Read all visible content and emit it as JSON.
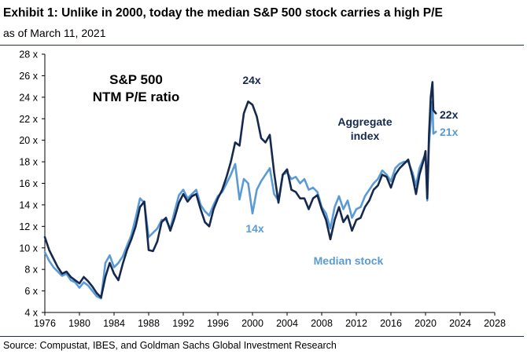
{
  "header": {
    "title": "Exhibit 1: Unlike in 2000, today the median S&P 500 stock carries a high P/E",
    "subtitle": "as of March 11, 2021"
  },
  "footer": {
    "source": "Source: Compustat, IBES, and Goldman Sachs Global Investment Research"
  },
  "colors": {
    "aggregate": "#15294f",
    "median": "#5b9bd5",
    "rule": "#1f2d5a"
  },
  "chart_data": {
    "type": "line",
    "title_line1": "S&P 500",
    "title_line2": "NTM P/E ratio",
    "xlim": [
      1976,
      2028
    ],
    "ylim": [
      4,
      28
    ],
    "x_ticks": [
      "1976",
      "1980",
      "1984",
      "1988",
      "1992",
      "1996",
      "2000",
      "2004",
      "2008",
      "2012",
      "2016",
      "2020",
      "2024",
      "2028"
    ],
    "y_ticks": [
      "4 x",
      "6 x",
      "8 x",
      "10 x",
      "12 x",
      "14 x",
      "16 x",
      "18 x",
      "20 x",
      "22 x",
      "24 x",
      "26 x",
      "28 x"
    ],
    "grid": false,
    "series": [
      {
        "name": "Aggregate index",
        "label_line1": "Aggregate",
        "label_line2": "index",
        "end_label": "22x",
        "color": "#15294f",
        "points": [
          [
            1976.0,
            11.0
          ],
          [
            1976.5,
            9.8
          ],
          [
            1977.0,
            9.0
          ],
          [
            1977.5,
            8.2
          ],
          [
            1978.0,
            7.6
          ],
          [
            1978.5,
            7.8
          ],
          [
            1979.0,
            7.3
          ],
          [
            1979.5,
            7.0
          ],
          [
            1980.0,
            6.7
          ],
          [
            1980.5,
            7.3
          ],
          [
            1981.0,
            6.9
          ],
          [
            1981.5,
            6.4
          ],
          [
            1982.0,
            5.8
          ],
          [
            1982.5,
            5.4
          ],
          [
            1983.0,
            7.3
          ],
          [
            1983.5,
            8.6
          ],
          [
            1984.0,
            7.6
          ],
          [
            1984.5,
            7.0
          ],
          [
            1985.0,
            8.5
          ],
          [
            1985.5,
            9.8
          ],
          [
            1986.0,
            10.8
          ],
          [
            1986.5,
            12.0
          ],
          [
            1987.0,
            13.8
          ],
          [
            1987.5,
            14.3
          ],
          [
            1988.0,
            9.8
          ],
          [
            1988.5,
            9.7
          ],
          [
            1989.0,
            10.6
          ],
          [
            1989.5,
            12.4
          ],
          [
            1990.0,
            12.8
          ],
          [
            1990.5,
            11.6
          ],
          [
            1991.0,
            12.8
          ],
          [
            1991.5,
            14.2
          ],
          [
            1992.0,
            15.0
          ],
          [
            1992.5,
            14.3
          ],
          [
            1993.0,
            14.8
          ],
          [
            1993.5,
            15.0
          ],
          [
            1994.0,
            13.6
          ],
          [
            1994.5,
            12.4
          ],
          [
            1995.0,
            12.0
          ],
          [
            1995.5,
            13.6
          ],
          [
            1996.0,
            14.6
          ],
          [
            1996.5,
            15.4
          ],
          [
            1997.0,
            16.6
          ],
          [
            1997.5,
            18.0
          ],
          [
            1998.0,
            19.8
          ],
          [
            1998.5,
            19.5
          ],
          [
            1999.0,
            22.5
          ],
          [
            1999.5,
            23.6
          ],
          [
            2000.0,
            23.3
          ],
          [
            2000.5,
            22.2
          ],
          [
            2001.0,
            20.2
          ],
          [
            2001.5,
            19.8
          ],
          [
            2002.0,
            20.5
          ],
          [
            2002.5,
            17.0
          ],
          [
            2003.0,
            14.2
          ],
          [
            2003.5,
            16.8
          ],
          [
            2004.0,
            17.3
          ],
          [
            2004.5,
            15.4
          ],
          [
            2005.0,
            15.2
          ],
          [
            2005.5,
            14.6
          ],
          [
            2006.0,
            14.6
          ],
          [
            2006.5,
            13.6
          ],
          [
            2007.0,
            14.6
          ],
          [
            2007.5,
            14.9
          ],
          [
            2008.0,
            13.6
          ],
          [
            2008.5,
            12.6
          ],
          [
            2009.0,
            10.8
          ],
          [
            2009.5,
            12.6
          ],
          [
            2010.0,
            13.8
          ],
          [
            2010.5,
            12.4
          ],
          [
            2011.0,
            13.0
          ],
          [
            2011.5,
            11.6
          ],
          [
            2012.0,
            12.6
          ],
          [
            2012.5,
            12.8
          ],
          [
            2013.0,
            13.8
          ],
          [
            2013.5,
            14.4
          ],
          [
            2014.0,
            15.4
          ],
          [
            2014.5,
            15.8
          ],
          [
            2015.0,
            16.8
          ],
          [
            2015.5,
            16.6
          ],
          [
            2016.0,
            15.6
          ],
          [
            2016.5,
            16.8
          ],
          [
            2017.0,
            17.4
          ],
          [
            2017.5,
            17.8
          ],
          [
            2018.0,
            18.2
          ],
          [
            2018.5,
            16.6
          ],
          [
            2018.9,
            15.0
          ],
          [
            2019.3,
            16.8
          ],
          [
            2019.8,
            18.2
          ],
          [
            2020.0,
            19.0
          ],
          [
            2020.2,
            14.6
          ],
          [
            2020.4,
            20.5
          ],
          [
            2020.6,
            24.0
          ],
          [
            2020.8,
            25.4
          ],
          [
            2020.9,
            22.8
          ],
          [
            2021.2,
            22.5
          ]
        ]
      },
      {
        "name": "Median stock",
        "label": "Median stock",
        "end_label": "21x",
        "color": "#5b9bd5",
        "points": [
          [
            1976.0,
            9.6
          ],
          [
            1976.5,
            8.8
          ],
          [
            1977.0,
            8.2
          ],
          [
            1977.5,
            7.8
          ],
          [
            1978.0,
            7.4
          ],
          [
            1978.5,
            7.6
          ],
          [
            1979.0,
            7.0
          ],
          [
            1979.5,
            6.8
          ],
          [
            1980.0,
            6.3
          ],
          [
            1980.5,
            6.8
          ],
          [
            1981.0,
            6.5
          ],
          [
            1981.5,
            6.0
          ],
          [
            1982.0,
            5.5
          ],
          [
            1982.5,
            5.3
          ],
          [
            1983.0,
            8.6
          ],
          [
            1983.5,
            9.3
          ],
          [
            1984.0,
            8.2
          ],
          [
            1984.5,
            8.6
          ],
          [
            1985.0,
            9.2
          ],
          [
            1985.5,
            10.2
          ],
          [
            1986.0,
            11.2
          ],
          [
            1986.5,
            12.8
          ],
          [
            1987.0,
            14.6
          ],
          [
            1987.5,
            14.2
          ],
          [
            1988.0,
            11.0
          ],
          [
            1988.5,
            11.4
          ],
          [
            1989.0,
            11.8
          ],
          [
            1989.5,
            12.6
          ],
          [
            1990.0,
            12.6
          ],
          [
            1990.5,
            11.8
          ],
          [
            1991.0,
            13.4
          ],
          [
            1991.5,
            14.9
          ],
          [
            1992.0,
            15.4
          ],
          [
            1992.5,
            14.6
          ],
          [
            1993.0,
            15.0
          ],
          [
            1993.5,
            15.4
          ],
          [
            1994.0,
            14.0
          ],
          [
            1994.5,
            13.4
          ],
          [
            1995.0,
            13.0
          ],
          [
            1995.5,
            14.0
          ],
          [
            1996.0,
            14.8
          ],
          [
            1996.5,
            15.2
          ],
          [
            1997.0,
            16.0
          ],
          [
            1997.5,
            16.8
          ],
          [
            1998.0,
            17.8
          ],
          [
            1998.5,
            14.5
          ],
          [
            1999.0,
            16.4
          ],
          [
            1999.5,
            16.0
          ],
          [
            2000.0,
            13.2
          ],
          [
            2000.5,
            15.4
          ],
          [
            2001.0,
            16.2
          ],
          [
            2001.5,
            16.8
          ],
          [
            2002.0,
            17.4
          ],
          [
            2002.5,
            15.0
          ],
          [
            2003.0,
            14.4
          ],
          [
            2003.5,
            16.8
          ],
          [
            2004.0,
            17.0
          ],
          [
            2004.5,
            16.4
          ],
          [
            2005.0,
            16.6
          ],
          [
            2005.5,
            16.0
          ],
          [
            2006.0,
            16.4
          ],
          [
            2006.5,
            15.4
          ],
          [
            2007.0,
            15.6
          ],
          [
            2007.5,
            15.2
          ],
          [
            2008.0,
            13.8
          ],
          [
            2008.5,
            13.2
          ],
          [
            2009.0,
            11.8
          ],
          [
            2009.5,
            13.8
          ],
          [
            2010.0,
            14.8
          ],
          [
            2010.5,
            13.6
          ],
          [
            2011.0,
            14.4
          ],
          [
            2011.5,
            12.8
          ],
          [
            2012.0,
            13.6
          ],
          [
            2012.5,
            13.8
          ],
          [
            2013.0,
            14.8
          ],
          [
            2013.5,
            15.4
          ],
          [
            2014.0,
            16.0
          ],
          [
            2014.5,
            16.4
          ],
          [
            2015.0,
            17.2
          ],
          [
            2015.5,
            16.8
          ],
          [
            2016.0,
            16.2
          ],
          [
            2016.5,
            17.4
          ],
          [
            2017.0,
            17.8
          ],
          [
            2017.5,
            18.0
          ],
          [
            2018.0,
            18.0
          ],
          [
            2018.5,
            17.0
          ],
          [
            2018.9,
            15.8
          ],
          [
            2019.3,
            17.4
          ],
          [
            2019.8,
            18.4
          ],
          [
            2020.0,
            18.6
          ],
          [
            2020.2,
            14.4
          ],
          [
            2020.4,
            19.6
          ],
          [
            2020.6,
            21.8
          ],
          [
            2020.8,
            23.6
          ],
          [
            2020.9,
            20.6
          ],
          [
            2021.2,
            20.8
          ]
        ]
      }
    ],
    "annotations": [
      {
        "text": "24x",
        "series": "Aggregate index"
      },
      {
        "text": "14x",
        "series": "Median stock"
      }
    ]
  }
}
